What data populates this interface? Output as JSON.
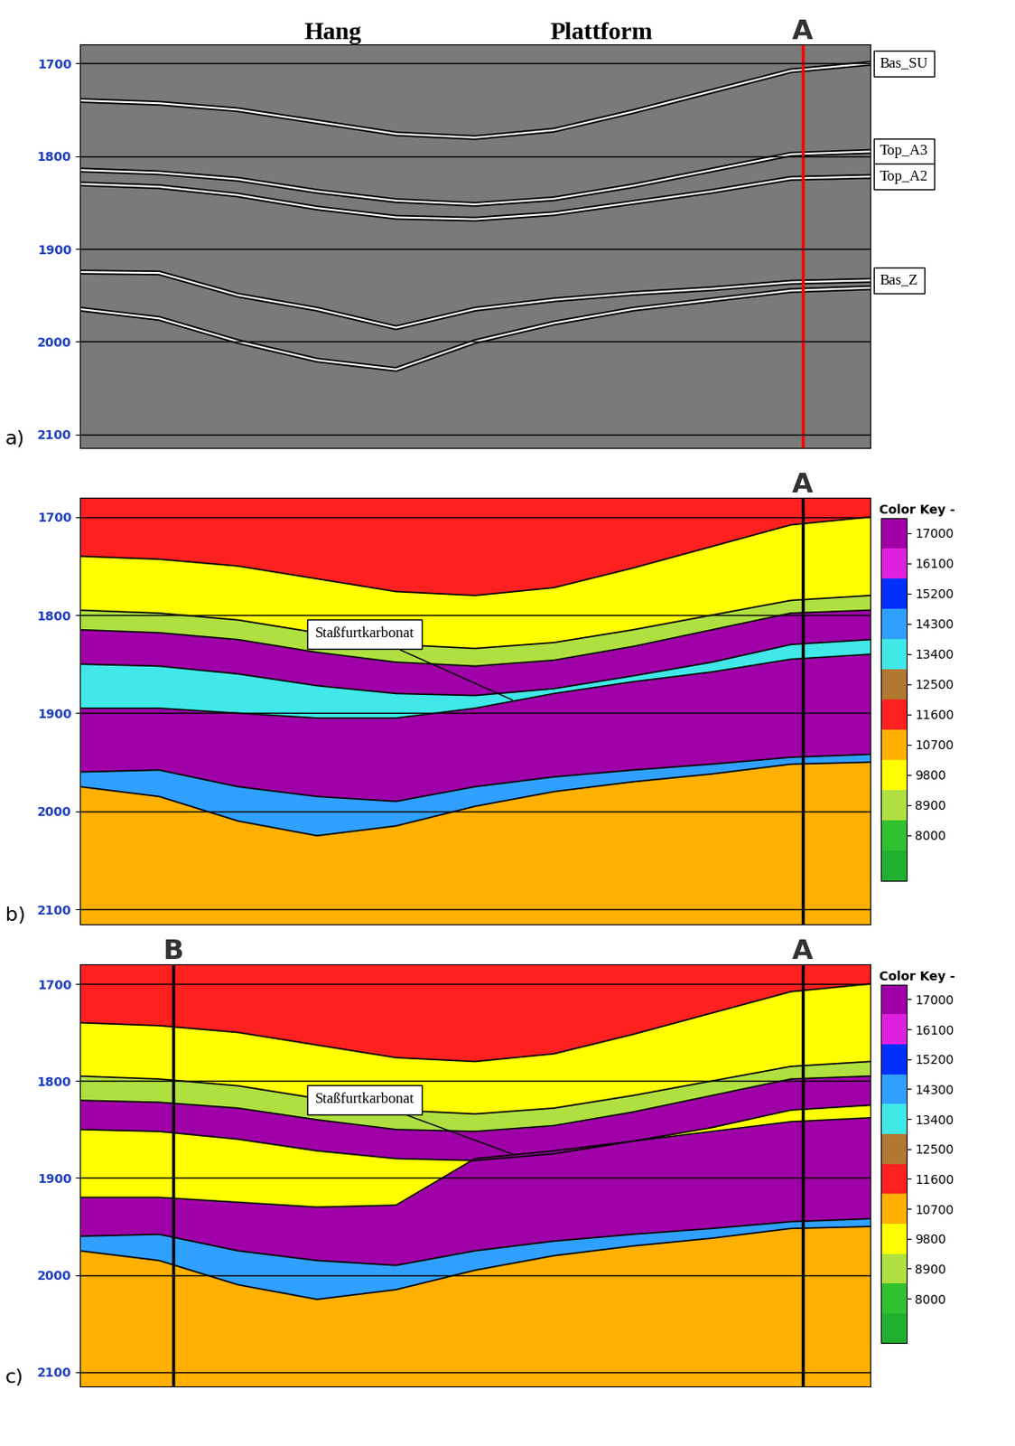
{
  "chart_data": {
    "type": "seismic_section",
    "x": [
      0,
      10,
      20,
      30,
      40,
      50,
      60,
      70,
      80,
      90,
      100
    ],
    "xlim": [
      0,
      100
    ],
    "ylim": [
      2115,
      1680
    ],
    "yticks": [
      1700,
      1800,
      1900,
      2000,
      2100
    ],
    "tick_labels": "y",
    "grid": true,
    "top_labels": [
      "Hang",
      "Plattform"
    ],
    "color_key": {
      "title": "Color Key -",
      "ticks": [
        8000,
        8900,
        9800,
        10700,
        11600,
        12500,
        13400,
        14300,
        15200,
        16100,
        17000
      ],
      "bounds": [
        6650,
        7550,
        8450,
        9350,
        10250,
        11150,
        12050,
        12950,
        13850,
        14750,
        15650,
        16550,
        17450
      ],
      "colors": [
        "#20b030",
        "#30c030",
        "#b0e040",
        "#ffff00",
        "#ffb000",
        "#ff2020",
        "#b07830",
        "#40e8e8",
        "#30a0ff",
        "#0030ff",
        "#e020e0",
        "#a000a8"
      ]
    },
    "panels": [
      {
        "label": "a)",
        "type": "seismic",
        "wells": [
          {
            "name": "A",
            "x": 91.5
          }
        ],
        "horizons": [
          {
            "name": "Bas_SU",
            "t": [
              1740,
              1743,
              1750,
              1763,
              1776,
              1780,
              1772,
              1752,
              1730,
              1708,
              1700
            ]
          },
          {
            "name": "Top_A3",
            "t": [
              1815,
              1818,
              1825,
              1838,
              1848,
              1852,
              1846,
              1832,
              1815,
              1798,
              1795
            ]
          },
          {
            "name": "Top_A2",
            "t": [
              1830,
              1833,
              1842,
              1856,
              1866,
              1868,
              1862,
              1850,
              1838,
              1824,
              1822
            ]
          },
          {
            "name": "Bas_Z",
            "t": [
              1925,
              1926,
              1950,
              1965,
              1985,
              1965,
              1955,
              1948,
              1943,
              1936,
              1934
            ]
          },
          {
            "name": null,
            "t": [
              1965,
              1975,
              2000,
              2020,
              2030,
              2000,
              1980,
              1965,
              1955,
              1945,
              1942
            ]
          }
        ]
      },
      {
        "label": "b)",
        "type": "impedance",
        "wells": [
          {
            "name": "A",
            "x": 91.5
          }
        ],
        "horizons": [
          {
            "name": null,
            "t": [
              1740,
              1743,
              1750,
              1763,
              1776,
              1780,
              1772,
              1752,
              1730,
              1708,
              1700
            ]
          },
          {
            "name": null,
            "t": [
              1795,
              1798,
              1805,
              1818,
              1830,
              1834,
              1828,
              1815,
              1800,
              1785,
              1780
            ]
          },
          {
            "name": null,
            "t": [
              1815,
              1818,
              1825,
              1838,
              1848,
              1852,
              1846,
              1832,
              1815,
              1798,
              1795
            ]
          },
          {
            "name": null,
            "t": [
              1850,
              1852,
              1860,
              1872,
              1880,
              1882,
              1875,
              1862,
              1848,
              1830,
              1825
            ]
          },
          {
            "name": "Staßfurtkarbonat",
            "t": [
              1895,
              1895,
              1900,
              1905,
              1905,
              1895,
              1880,
              1868,
              1858,
              1845,
              1840
            ]
          },
          {
            "name": null,
            "t": [
              1960,
              1958,
              1975,
              1985,
              1990,
              1975,
              1965,
              1958,
              1952,
              1945,
              1942
            ]
          },
          {
            "name": null,
            "t": [
              1975,
              1985,
              2010,
              2025,
              2015,
              1995,
              1980,
              1970,
              1962,
              1952,
              1950
            ]
          }
        ],
        "layers": [
          11600,
          9800,
          8900,
          17000,
          13400,
          17000,
          14300,
          10700
        ]
      },
      {
        "label": "c)",
        "type": "impedance",
        "wells": [
          {
            "name": "B",
            "x": 11.8
          },
          {
            "name": "A",
            "x": 91.5
          }
        ],
        "horizons": [
          {
            "name": null,
            "t": [
              1740,
              1743,
              1750,
              1763,
              1776,
              1780,
              1772,
              1752,
              1730,
              1708,
              1700
            ]
          },
          {
            "name": null,
            "t": [
              1795,
              1798,
              1805,
              1818,
              1830,
              1834,
              1828,
              1815,
              1800,
              1785,
              1780
            ]
          },
          {
            "name": null,
            "t": [
              1820,
              1822,
              1828,
              1840,
              1850,
              1852,
              1846,
              1832,
              1815,
              1798,
              1795
            ]
          },
          {
            "name": null,
            "t": [
              1850,
              1852,
              1860,
              1872,
              1880,
              1882,
              1875,
              1862,
              1848,
              1830,
              1825
            ]
          },
          {
            "name": "Staßfurtkarbonat",
            "t": [
              1920,
              1920,
              1925,
              1930,
              1928,
              1880,
              1872,
              1862,
              1852,
              1842,
              1838
            ]
          },
          {
            "name": null,
            "t": [
              1960,
              1958,
              1975,
              1985,
              1990,
              1975,
              1965,
              1958,
              1952,
              1945,
              1942
            ]
          },
          {
            "name": null,
            "t": [
              1975,
              1985,
              2010,
              2025,
              2015,
              1995,
              1980,
              1970,
              1962,
              1952,
              1950
            ]
          }
        ],
        "layers": [
          11600,
          9800,
          8900,
          17000,
          9800,
          17000,
          14300,
          10700
        ]
      }
    ]
  }
}
